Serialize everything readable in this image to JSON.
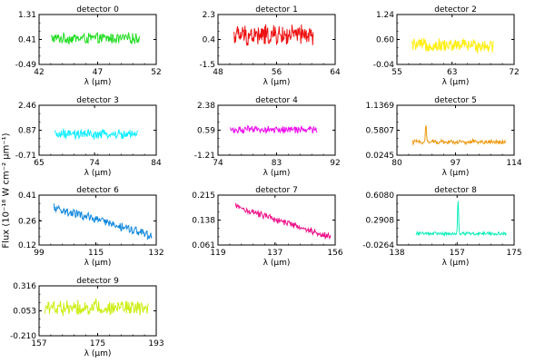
{
  "figure": {
    "ylabel": "Flux (10⁻¹⁸ W cm⁻² μm⁻¹)",
    "xlabel": "λ (μm)"
  },
  "chart_data": [
    {
      "type": "line",
      "title": "detector 0",
      "color": "#22dd22",
      "xlim": [
        42,
        52
      ],
      "xticks": [
        "42",
        "47",
        "52"
      ],
      "ylim": [
        -0.49,
        1.31
      ],
      "yticks": [
        "-0.49",
        "0.41",
        "1.31"
      ],
      "x_range": [
        43.0,
        50.6
      ],
      "baseline": 0.45,
      "noise": 0.22,
      "xlabel": "λ (μm)"
    },
    {
      "type": "line",
      "title": "detector 1",
      "color": "#ee1111",
      "xlim": [
        48,
        64
      ],
      "xticks": [
        "48",
        "56",
        "64"
      ],
      "ylim": [
        -1.5,
        2.3
      ],
      "yticks": [
        "-1.5",
        "0.4",
        "2.3"
      ],
      "x_range": [
        50.2,
        61.0
      ],
      "baseline": 0.7,
      "noise": 0.9,
      "xlabel": "λ (μm)"
    },
    {
      "type": "line",
      "title": "detector 2",
      "color": "#ffee11",
      "xlim": [
        55,
        72
      ],
      "xticks": [
        "55",
        "63",
        "72"
      ],
      "ylim": [
        -0.04,
        1.24
      ],
      "yticks": [
        "-0.04",
        "0.60",
        "1.24"
      ],
      "x_range": [
        57.2,
        69.0
      ],
      "baseline": 0.45,
      "noise": 0.2,
      "xlabel": "λ (μm)"
    },
    {
      "type": "line",
      "title": "detector 3",
      "color": "#11eeff",
      "xlim": [
        65,
        84
      ],
      "xticks": [
        "65",
        "74",
        "84"
      ],
      "ylim": [
        -0.71,
        2.46
      ],
      "yticks": [
        "-0.71",
        "0.87",
        "2.46"
      ],
      "x_range": [
        67.5,
        81.0
      ],
      "baseline": 0.6,
      "noise": 0.35,
      "xlabel": "λ (μm)"
    },
    {
      "type": "line",
      "title": "detector 4",
      "color": "#ee11ee",
      "xlim": [
        74,
        92
      ],
      "xticks": [
        "74",
        "83",
        "92"
      ],
      "ylim": [
        -1.21,
        2.38
      ],
      "yticks": [
        "-1.21",
        "0.59",
        "2.38"
      ],
      "x_range": [
        75.9,
        89.2
      ],
      "baseline": 0.62,
      "noise": 0.3,
      "xlabel": "λ (μm)"
    },
    {
      "type": "line",
      "title": "detector 5",
      "color": "#ee9911",
      "xlim": [
        80,
        114
      ],
      "xticks": [
        "80",
        "97",
        "114"
      ],
      "ylim": [
        0.0245,
        1.1369
      ],
      "yticks": [
        "0.0245",
        "0.5807",
        "1.1369"
      ],
      "x_range": [
        84.4,
        111.5
      ],
      "baseline": 0.32,
      "noise": 0.06,
      "xlabel": "λ (μm)",
      "peaks": [
        {
          "x": 88.4,
          "height": 0.42
        }
      ]
    },
    {
      "type": "line",
      "title": "detector 6",
      "color": "#1188dd",
      "xlim": [
        99,
        132
      ],
      "xticks": [
        "99",
        "115",
        "132"
      ],
      "ylim": [
        0.12,
        0.41
      ],
      "yticks": [
        "0.12",
        "0.26",
        "0.41"
      ],
      "x_range": [
        103.2,
        130.8
      ],
      "baseline_start": 0.335,
      "baseline_end": 0.175,
      "noise": 0.03,
      "xlabel": "λ (μm)"
    },
    {
      "type": "line",
      "title": "detector 7",
      "color": "#ee1188",
      "xlim": [
        119,
        156
      ],
      "xticks": [
        "119",
        "137",
        "156"
      ],
      "ylim": [
        0.061,
        0.215
      ],
      "yticks": [
        "0.061",
        "0.138",
        "0.215"
      ],
      "x_range": [
        124.5,
        154.6
      ],
      "baseline_start": 0.18,
      "baseline_end": 0.085,
      "noise": 0.012,
      "xlabel": "λ (μm)"
    },
    {
      "type": "line",
      "title": "detector 8",
      "color": "#11eebb",
      "xlim": [
        138,
        175
      ],
      "xticks": [
        "138",
        "157",
        "175"
      ],
      "ylim": [
        -0.0264,
        0.608
      ],
      "yticks": [
        "-0.0264",
        "0.2908",
        "0.6080"
      ],
      "x_range": [
        144.0,
        172.5
      ],
      "baseline": 0.12,
      "noise": 0.025,
      "xlabel": "λ (μm)",
      "peaks": [
        {
          "x": 157.3,
          "height": 0.45
        }
      ]
    },
    {
      "type": "line",
      "title": "detector 9",
      "color": "#ccee11",
      "xlim": [
        157,
        193
      ],
      "xticks": [
        "157",
        "175",
        "193"
      ],
      "ylim": [
        -0.21,
        0.316
      ],
      "yticks": [
        "-0.210",
        "0.053",
        "0.316"
      ],
      "x_range": [
        158.8,
        190.6
      ],
      "baseline": 0.09,
      "noise": 0.1,
      "xlabel": "λ (μm)"
    }
  ]
}
